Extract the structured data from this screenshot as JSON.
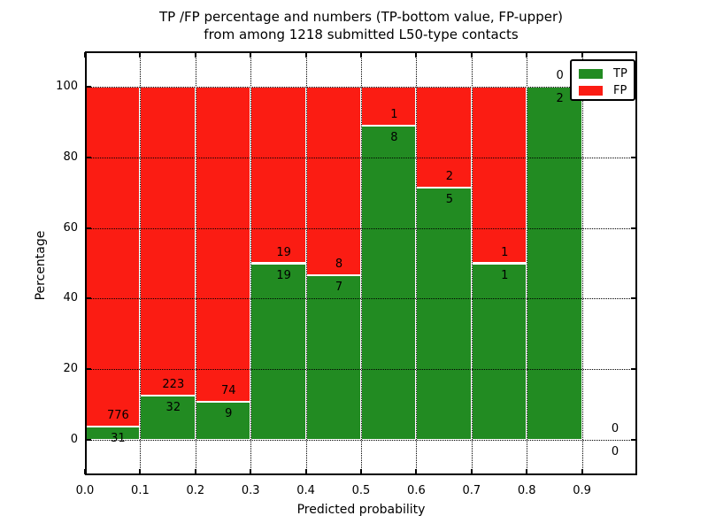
{
  "title": {
    "line1": "TP /FP percentage and numbers (TP-bottom value, FP-upper)",
    "line2": "from among 1218 submitted L50-type contacts"
  },
  "axes": {
    "xlabel": "Predicted probability",
    "ylabel": "Percentage"
  },
  "legend": {
    "items": [
      {
        "label": "TP",
        "color": "#228b22"
      },
      {
        "label": "FP",
        "color": "#fb1c13"
      }
    ]
  },
  "colors": {
    "tp": "#228b22",
    "fp": "#fb1c13",
    "bar_edge": "#ffffff",
    "grid": "#000000"
  },
  "chart_data": {
    "type": "bar",
    "stacked": true,
    "normalized_to_percent": 100,
    "title": "TP /FP percentage and numbers (TP-bottom value, FP-upper)\nfrom among 1218 submitted L50-type contacts",
    "xlabel": "Predicted probability",
    "ylabel": "Percentage",
    "xlim": [
      0.0,
      1.0
    ],
    "ylim": [
      -10,
      110
    ],
    "grid": true,
    "legend_position": "upper right",
    "bin_edges": [
      0.0,
      0.1,
      0.2,
      0.3,
      0.4,
      0.5,
      0.6,
      0.7,
      0.8,
      0.9,
      1.0
    ],
    "x_ticks": [
      0.0,
      0.1,
      0.2,
      0.3,
      0.4,
      0.5,
      0.6,
      0.7,
      0.8,
      0.9
    ],
    "x_tick_labels": [
      "0.0",
      "0.1",
      "0.2",
      "0.3",
      "0.4",
      "0.5",
      "0.6",
      "0.7",
      "0.8",
      "0.9"
    ],
    "y_ticks": [
      0,
      20,
      40,
      60,
      80,
      100
    ],
    "y_tick_labels": [
      "0",
      "20",
      "40",
      "60",
      "80",
      "100"
    ],
    "series": [
      {
        "name": "TP",
        "color": "#228b22",
        "values": [
          31,
          32,
          9,
          19,
          7,
          8,
          5,
          1,
          2,
          0
        ]
      },
      {
        "name": "FP",
        "color": "#fb1c13",
        "values": [
          776,
          223,
          74,
          19,
          8,
          1,
          2,
          1,
          0,
          0
        ]
      }
    ],
    "total_contacts": 1218
  }
}
